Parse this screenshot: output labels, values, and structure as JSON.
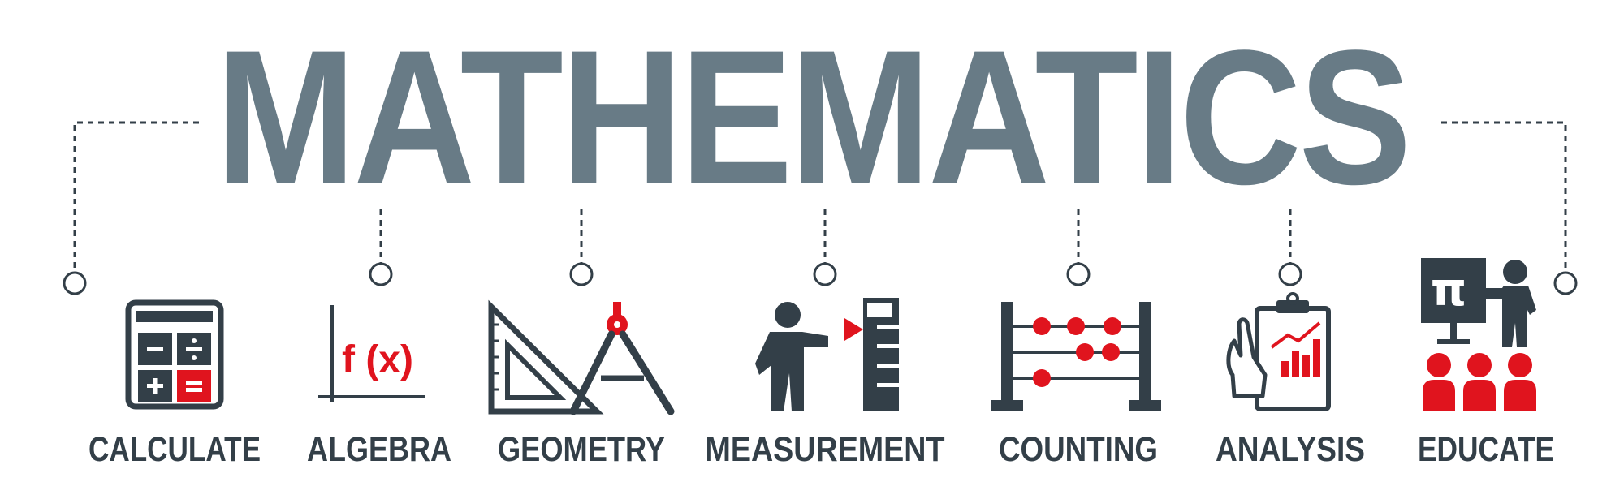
{
  "title": "MATHEMATICS",
  "colors": {
    "title": "#687b86",
    "ink": "#333f48",
    "accent": "#e0141e"
  },
  "items": [
    {
      "label": "CALCULATE",
      "icon": "calculator-icon"
    },
    {
      "label": "ALGEBRA",
      "icon": "function-graph-icon",
      "symbol": "f (x)"
    },
    {
      "label": "GEOMETRY",
      "icon": "set-square-compass-icon"
    },
    {
      "label": "MEASUREMENT",
      "icon": "person-measuring-icon"
    },
    {
      "label": "COUNTING",
      "icon": "abacus-icon"
    },
    {
      "label": "ANALYSIS",
      "icon": "clipboard-chart-icon"
    },
    {
      "label": "EDUCATE",
      "icon": "teacher-pi-icon",
      "symbol": "π"
    }
  ]
}
